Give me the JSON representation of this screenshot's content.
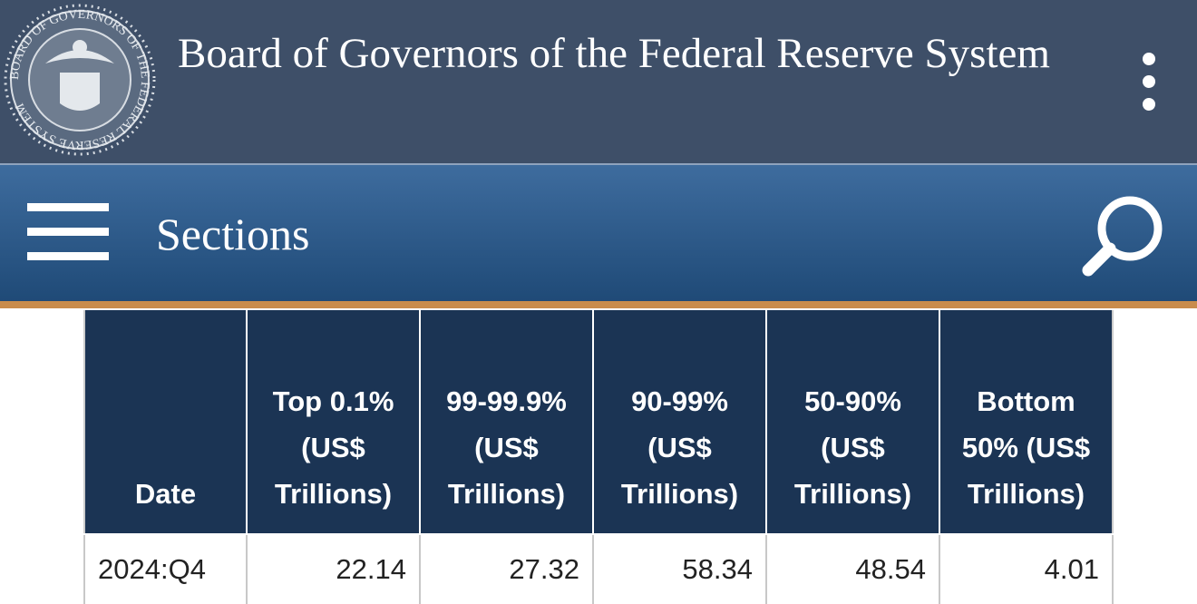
{
  "header": {
    "seal_text": "BOARD OF GOVERNORS OF THE FEDERAL RESERVE SYSTEM",
    "title": "Board of Governors of the Federal Reserve System"
  },
  "nav": {
    "label": "Sections"
  },
  "table": {
    "columns": [
      "Date",
      "Top 0.1% (US$ Trillions)",
      "99-99.9% (US$ Trillions)",
      "90-99% (US$ Trillions)",
      "50-90% (US$ Trillions)",
      "Bottom 50% (US$ Trillions)"
    ],
    "rows": [
      [
        "2024:Q4",
        "22.14",
        "27.32",
        "58.34",
        "48.54",
        "4.01"
      ]
    ]
  }
}
